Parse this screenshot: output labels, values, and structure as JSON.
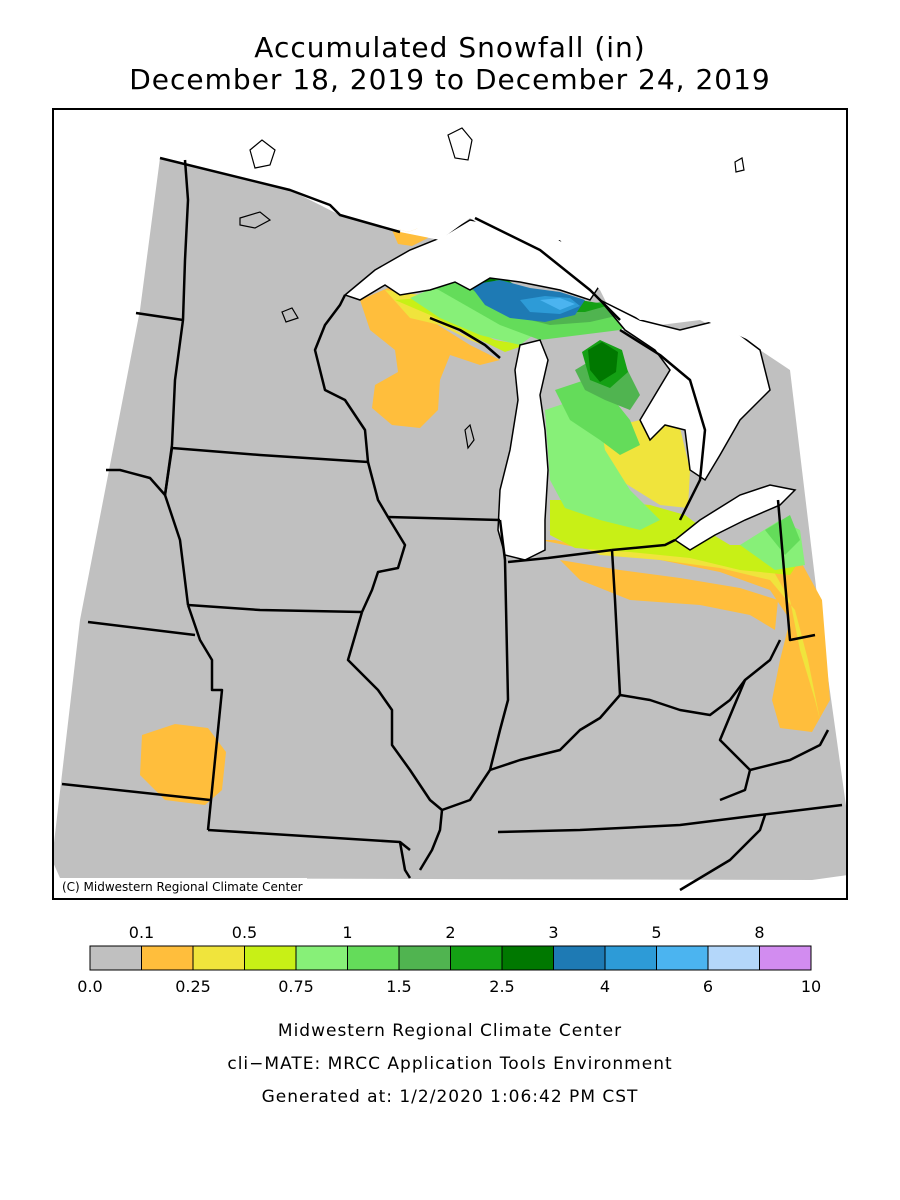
{
  "title": "Accumulated Snowfall (in)",
  "subtitle": "December 18, 2019 to December 24, 2019",
  "credit": "(C) Midwestern Regional Climate Center",
  "legend": {
    "bins": [
      {
        "from": 0.0,
        "to": 0.1,
        "color": "#c0c0c0"
      },
      {
        "from": 0.1,
        "to": 0.25,
        "color": "#ffbe3c"
      },
      {
        "from": 0.25,
        "to": 0.5,
        "color": "#f0e43c"
      },
      {
        "from": 0.5,
        "to": 0.75,
        "color": "#c8f016"
      },
      {
        "from": 0.75,
        "to": 1,
        "color": "#87f078"
      },
      {
        "from": 1,
        "to": 1.5,
        "color": "#64dc5a"
      },
      {
        "from": 1.5,
        "to": 2,
        "color": "#50b450"
      },
      {
        "from": 2,
        "to": 2.5,
        "color": "#14a014"
      },
      {
        "from": 2.5,
        "to": 3,
        "color": "#007800"
      },
      {
        "from": 3,
        "to": 4,
        "color": "#1e7ab4"
      },
      {
        "from": 4,
        "to": 5,
        "color": "#2d9bd7"
      },
      {
        "from": 5,
        "to": 6,
        "color": "#4bb4f0"
      },
      {
        "from": 6,
        "to": 8,
        "color": "#b4d7fa"
      },
      {
        "from": 8,
        "to": 10,
        "color": "#d28cf0"
      }
    ],
    "top_labels": [
      "0.1",
      "0.5",
      "1",
      "2",
      "3",
      "5",
      "8"
    ],
    "bottom_labels": [
      "0.0",
      "0.25",
      "0.75",
      "1.5",
      "2.5",
      "4",
      "6",
      "10"
    ]
  },
  "colors": {
    "background": "#c0c0c0",
    "water": "#ffffff",
    "borders": "#000000"
  },
  "footer": {
    "line1": "Midwestern Regional Climate Center",
    "line2": "cli−MATE: MRCC Application Tools Environment",
    "line3": "Generated at: 1/2/2020 1:06:42 PM CST"
  }
}
